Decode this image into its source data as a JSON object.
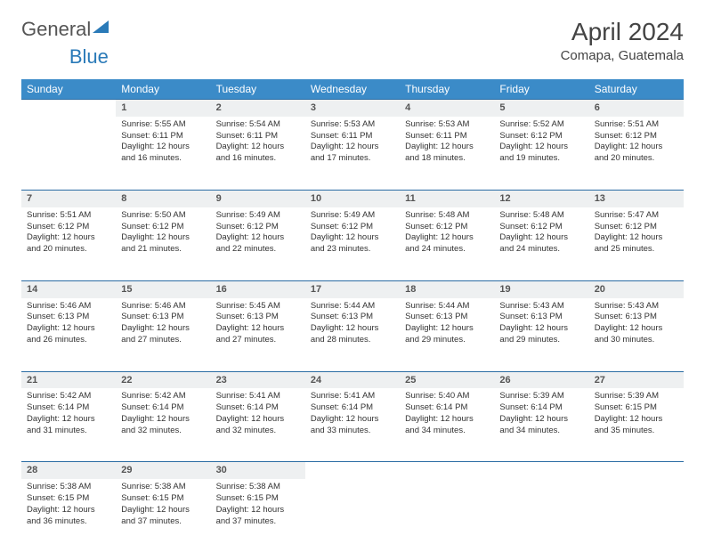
{
  "brand": {
    "part1": "General",
    "part2": "Blue"
  },
  "title": "April 2024",
  "location": "Comapa, Guatemala",
  "day_headers": [
    "Sunday",
    "Monday",
    "Tuesday",
    "Wednesday",
    "Thursday",
    "Friday",
    "Saturday"
  ],
  "colors": {
    "header_bg": "#3b8bc8",
    "row_border": "#2a6ca3",
    "daynum_bg": "#eef0f1",
    "brand_blue": "#2a7ab8"
  },
  "weeks": [
    [
      {
        "n": "",
        "sr": "",
        "ss": "",
        "dl": ""
      },
      {
        "n": "1",
        "sr": "5:55 AM",
        "ss": "6:11 PM",
        "dl": "12 hours and 16 minutes."
      },
      {
        "n": "2",
        "sr": "5:54 AM",
        "ss": "6:11 PM",
        "dl": "12 hours and 16 minutes."
      },
      {
        "n": "3",
        "sr": "5:53 AM",
        "ss": "6:11 PM",
        "dl": "12 hours and 17 minutes."
      },
      {
        "n": "4",
        "sr": "5:53 AM",
        "ss": "6:11 PM",
        "dl": "12 hours and 18 minutes."
      },
      {
        "n": "5",
        "sr": "5:52 AM",
        "ss": "6:12 PM",
        "dl": "12 hours and 19 minutes."
      },
      {
        "n": "6",
        "sr": "5:51 AM",
        "ss": "6:12 PM",
        "dl": "12 hours and 20 minutes."
      }
    ],
    [
      {
        "n": "7",
        "sr": "5:51 AM",
        "ss": "6:12 PM",
        "dl": "12 hours and 20 minutes."
      },
      {
        "n": "8",
        "sr": "5:50 AM",
        "ss": "6:12 PM",
        "dl": "12 hours and 21 minutes."
      },
      {
        "n": "9",
        "sr": "5:49 AM",
        "ss": "6:12 PM",
        "dl": "12 hours and 22 minutes."
      },
      {
        "n": "10",
        "sr": "5:49 AM",
        "ss": "6:12 PM",
        "dl": "12 hours and 23 minutes."
      },
      {
        "n": "11",
        "sr": "5:48 AM",
        "ss": "6:12 PM",
        "dl": "12 hours and 24 minutes."
      },
      {
        "n": "12",
        "sr": "5:48 AM",
        "ss": "6:12 PM",
        "dl": "12 hours and 24 minutes."
      },
      {
        "n": "13",
        "sr": "5:47 AM",
        "ss": "6:12 PM",
        "dl": "12 hours and 25 minutes."
      }
    ],
    [
      {
        "n": "14",
        "sr": "5:46 AM",
        "ss": "6:13 PM",
        "dl": "12 hours and 26 minutes."
      },
      {
        "n": "15",
        "sr": "5:46 AM",
        "ss": "6:13 PM",
        "dl": "12 hours and 27 minutes."
      },
      {
        "n": "16",
        "sr": "5:45 AM",
        "ss": "6:13 PM",
        "dl": "12 hours and 27 minutes."
      },
      {
        "n": "17",
        "sr": "5:44 AM",
        "ss": "6:13 PM",
        "dl": "12 hours and 28 minutes."
      },
      {
        "n": "18",
        "sr": "5:44 AM",
        "ss": "6:13 PM",
        "dl": "12 hours and 29 minutes."
      },
      {
        "n": "19",
        "sr": "5:43 AM",
        "ss": "6:13 PM",
        "dl": "12 hours and 29 minutes."
      },
      {
        "n": "20",
        "sr": "5:43 AM",
        "ss": "6:13 PM",
        "dl": "12 hours and 30 minutes."
      }
    ],
    [
      {
        "n": "21",
        "sr": "5:42 AM",
        "ss": "6:14 PM",
        "dl": "12 hours and 31 minutes."
      },
      {
        "n": "22",
        "sr": "5:42 AM",
        "ss": "6:14 PM",
        "dl": "12 hours and 32 minutes."
      },
      {
        "n": "23",
        "sr": "5:41 AM",
        "ss": "6:14 PM",
        "dl": "12 hours and 32 minutes."
      },
      {
        "n": "24",
        "sr": "5:41 AM",
        "ss": "6:14 PM",
        "dl": "12 hours and 33 minutes."
      },
      {
        "n": "25",
        "sr": "5:40 AM",
        "ss": "6:14 PM",
        "dl": "12 hours and 34 minutes."
      },
      {
        "n": "26",
        "sr": "5:39 AM",
        "ss": "6:14 PM",
        "dl": "12 hours and 34 minutes."
      },
      {
        "n": "27",
        "sr": "5:39 AM",
        "ss": "6:15 PM",
        "dl": "12 hours and 35 minutes."
      }
    ],
    [
      {
        "n": "28",
        "sr": "5:38 AM",
        "ss": "6:15 PM",
        "dl": "12 hours and 36 minutes."
      },
      {
        "n": "29",
        "sr": "5:38 AM",
        "ss": "6:15 PM",
        "dl": "12 hours and 37 minutes."
      },
      {
        "n": "30",
        "sr": "5:38 AM",
        "ss": "6:15 PM",
        "dl": "12 hours and 37 minutes."
      },
      {
        "n": "",
        "sr": "",
        "ss": "",
        "dl": ""
      },
      {
        "n": "",
        "sr": "",
        "ss": "",
        "dl": ""
      },
      {
        "n": "",
        "sr": "",
        "ss": "",
        "dl": ""
      },
      {
        "n": "",
        "sr": "",
        "ss": "",
        "dl": ""
      }
    ]
  ],
  "labels": {
    "sunrise": "Sunrise:",
    "sunset": "Sunset:",
    "daylight": "Daylight:"
  }
}
